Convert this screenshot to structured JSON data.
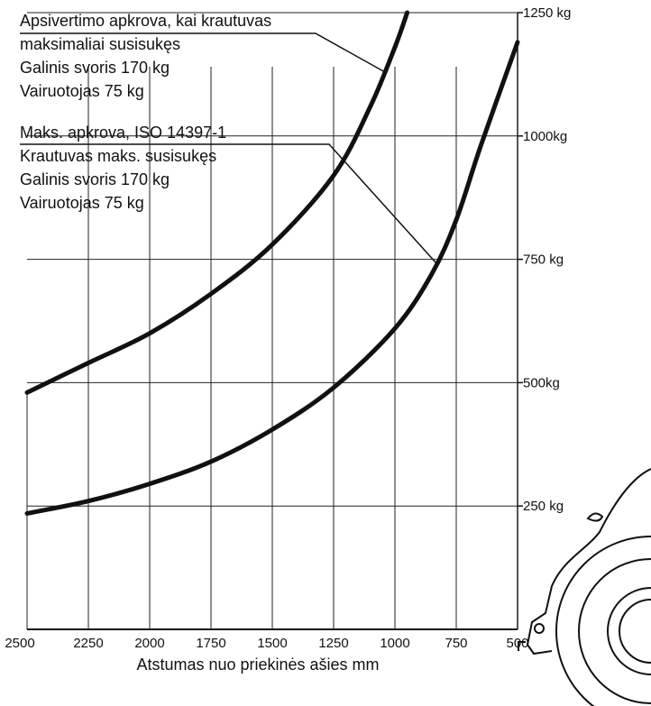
{
  "chart_data": {
    "type": "line",
    "xlabel": "Atstumas nuo priekinės ašies mm",
    "x_ticks": [
      2500,
      2250,
      2000,
      1750,
      1500,
      1250,
      1000,
      750,
      500
    ],
    "x_tick_labels": [
      "2500",
      "2250",
      "2000",
      "1750",
      "1500",
      "1250",
      "1000",
      "750",
      "500"
    ],
    "y_ticks": [
      250,
      500,
      750,
      1000,
      1250
    ],
    "y_tick_labels": [
      "250 kg",
      "500kg",
      "750 kg",
      "1000kg",
      "1250 kg"
    ],
    "xlim": [
      2500,
      500
    ],
    "ylim": [
      0,
      1250
    ],
    "grid": true,
    "series": [
      {
        "name_lines": [
          "Apsivertimo apkrova, kai krautuvas",
          "maksimaliai susisukęs",
          "Galinis svoris 170 kg",
          "Vairuotojas 75 kg"
        ],
        "x": [
          2500,
          2250,
          2000,
          1750,
          1500,
          1250,
          1100,
          1000,
          950
        ],
        "y": [
          480,
          540,
          600,
          680,
          780,
          920,
          1060,
          1180,
          1250
        ]
      },
      {
        "name_lines": [
          "Maks. apkrova, ISO 14397-1",
          "Krautuvas maks. susisukęs",
          "Galinis svoris 170 kg",
          "Vairuotojas 75 kg"
        ],
        "x": [
          2500,
          2250,
          2000,
          1750,
          1500,
          1250,
          1000,
          850,
          750,
          650,
          500
        ],
        "y": [
          235,
          260,
          295,
          340,
          405,
          490,
          610,
          720,
          830,
          980,
          1190
        ]
      }
    ]
  }
}
